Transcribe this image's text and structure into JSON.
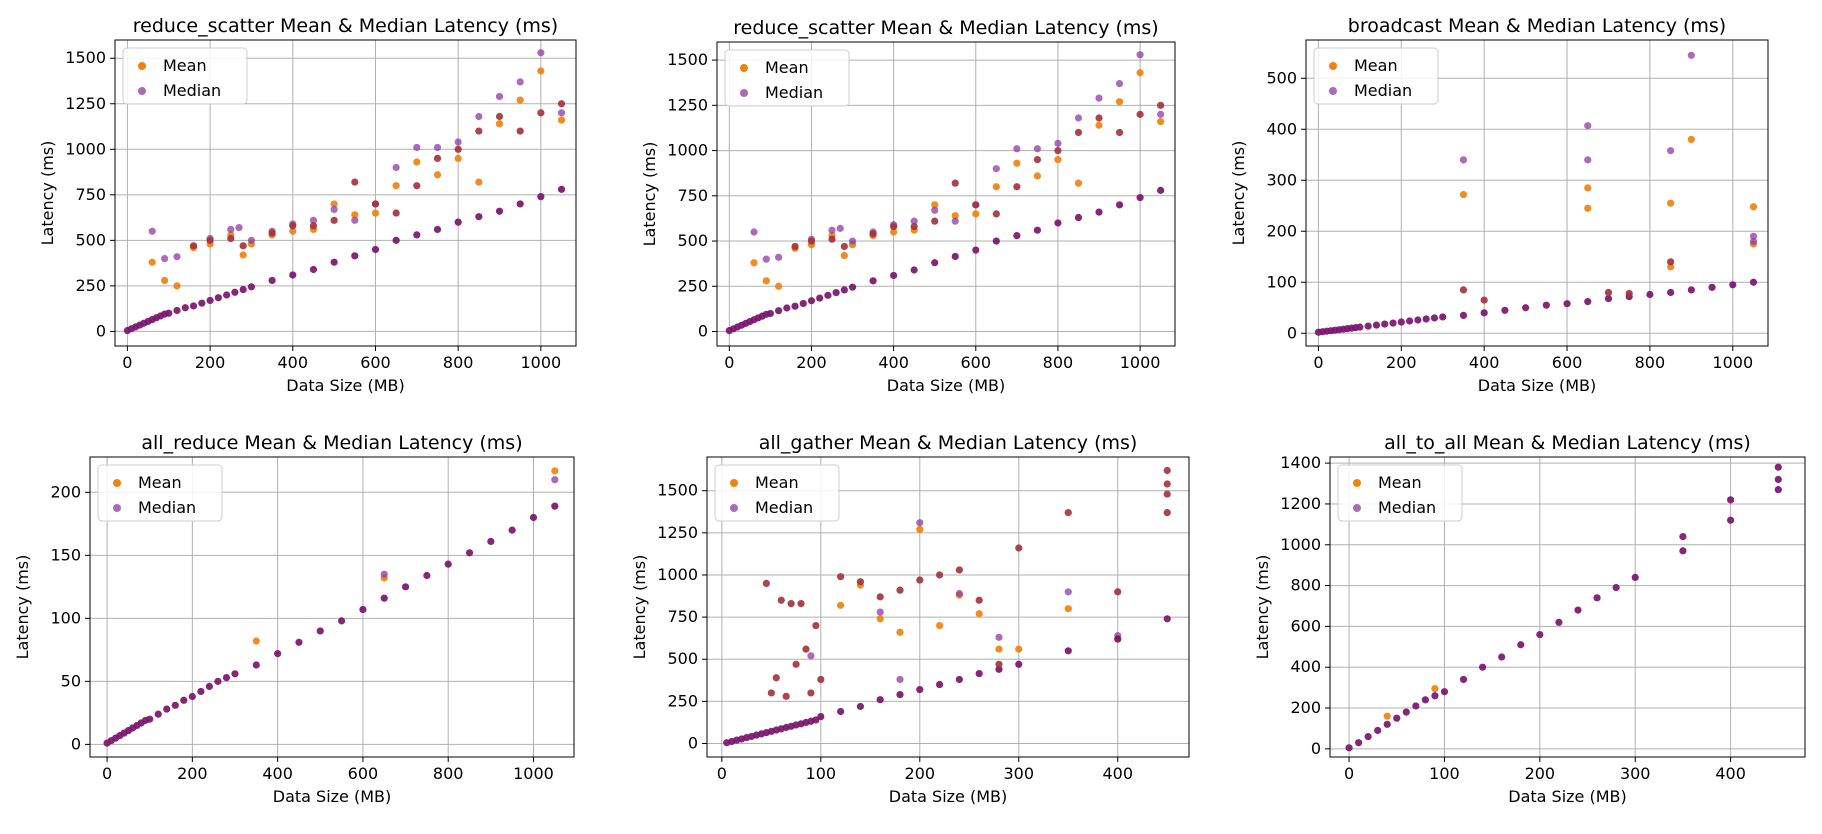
{
  "colors": {
    "mean": "#f0820f",
    "median": "#8e3aa3",
    "overlap": "#a4343d",
    "overlap_deep": "#7a156e",
    "grid": "#b0b0b0"
  },
  "chart_data": [
    {
      "type": "scatter",
      "title": "reduce_scatter Mean & Median Latency (ms)",
      "xlabel": "Data Size (MB)",
      "ylabel": "Latency (ms)",
      "xlim": [
        -30,
        1085
      ],
      "ylim": [
        -80,
        1600
      ],
      "xticks": [
        0,
        200,
        400,
        600,
        800,
        1000
      ],
      "yticks": [
        0,
        250,
        500,
        750,
        1000,
        1250,
        1500
      ],
      "grid": true,
      "legend_position": "top-left",
      "legend": [
        "Mean",
        "Median"
      ],
      "series": [
        {
          "name": "Mean",
          "x": [
            60,
            90,
            120,
            160,
            200,
            250,
            280,
            300,
            350,
            400,
            450,
            500,
            550,
            600,
            650,
            700,
            750,
            800,
            850,
            900,
            950,
            1000,
            1050
          ],
          "y": [
            380,
            280,
            250,
            460,
            480,
            530,
            420,
            480,
            530,
            550,
            560,
            700,
            640,
            650,
            800,
            930,
            860,
            950,
            820,
            1140,
            1270,
            1430,
            1160
          ]
        },
        {
          "name": "Median",
          "x": [
            60,
            90,
            120,
            200,
            250,
            270,
            300,
            350,
            400,
            450,
            500,
            550,
            600,
            650,
            700,
            750,
            800,
            850,
            900,
            950,
            1000,
            1050
          ],
          "y": [
            550,
            400,
            410,
            510,
            560,
            570,
            500,
            550,
            590,
            610,
            670,
            610,
            700,
            900,
            1010,
            1010,
            1040,
            1180,
            1290,
            1370,
            1530,
            1200
          ]
        },
        {
          "name": "",
          "x": [
            0,
            10,
            20,
            30,
            40,
            50,
            60,
            70,
            80,
            90,
            100,
            120,
            140,
            160,
            180,
            200,
            220,
            240,
            260,
            280,
            300,
            350,
            400,
            450,
            500,
            550,
            600,
            650,
            700,
            750,
            800,
            850,
            900,
            950,
            1000,
            1050
          ],
          "y": [
            5,
            15,
            25,
            35,
            45,
            55,
            65,
            75,
            85,
            95,
            100,
            115,
            130,
            140,
            155,
            170,
            185,
            200,
            215,
            230,
            245,
            280,
            310,
            340,
            380,
            415,
            450,
            500,
            530,
            560,
            600,
            630,
            660,
            700,
            740,
            780
          ]
        },
        {
          "name": "",
          "x": [
            160,
            200,
            250,
            280,
            350,
            400,
            450,
            500,
            550,
            600,
            650,
            700,
            750,
            800,
            850,
            900,
            950,
            1000,
            1050
          ],
          "y": [
            470,
            500,
            510,
            470,
            540,
            580,
            580,
            610,
            820,
            700,
            650,
            800,
            950,
            1000,
            1100,
            1180,
            1100,
            1200,
            1250
          ]
        }
      ]
    },
    {
      "type": "scatter",
      "title": "reduce_scatter Mean & Median Latency (ms)",
      "xlabel": "Data Size (MB)",
      "ylabel": "Latency (ms)",
      "xlim": [
        -30,
        1085
      ],
      "ylim": [
        -80,
        1600
      ],
      "xticks": [
        0,
        200,
        400,
        600,
        800,
        1000
      ],
      "yticks": [
        0,
        250,
        500,
        750,
        1000,
        1250,
        1500
      ],
      "grid": true,
      "legend_position": "top-left",
      "legend": [
        "Mean",
        "Median"
      ],
      "series": [
        {
          "name": "Mean",
          "x": [
            60,
            90,
            120,
            160,
            200,
            250,
            280,
            300,
            350,
            400,
            450,
            500,
            550,
            600,
            650,
            700,
            750,
            800,
            850,
            900,
            950,
            1000,
            1050
          ],
          "y": [
            380,
            280,
            250,
            460,
            480,
            530,
            420,
            480,
            530,
            550,
            560,
            700,
            640,
            650,
            800,
            930,
            860,
            950,
            820,
            1140,
            1270,
            1430,
            1160
          ]
        },
        {
          "name": "Median",
          "x": [
            60,
            90,
            120,
            200,
            250,
            270,
            300,
            350,
            400,
            450,
            500,
            550,
            600,
            650,
            700,
            750,
            800,
            850,
            900,
            950,
            1000,
            1050
          ],
          "y": [
            550,
            400,
            410,
            510,
            560,
            570,
            500,
            550,
            590,
            610,
            670,
            610,
            700,
            900,
            1010,
            1010,
            1040,
            1180,
            1290,
            1370,
            1530,
            1200
          ]
        },
        {
          "name": "",
          "x": [
            0,
            10,
            20,
            30,
            40,
            50,
            60,
            70,
            80,
            90,
            100,
            120,
            140,
            160,
            180,
            200,
            220,
            240,
            260,
            280,
            300,
            350,
            400,
            450,
            500,
            550,
            600,
            650,
            700,
            750,
            800,
            850,
            900,
            950,
            1000,
            1050
          ],
          "y": [
            5,
            15,
            25,
            35,
            45,
            55,
            65,
            75,
            85,
            95,
            100,
            115,
            130,
            140,
            155,
            170,
            185,
            200,
            215,
            230,
            245,
            280,
            310,
            340,
            380,
            415,
            450,
            500,
            530,
            560,
            600,
            630,
            660,
            700,
            740,
            780
          ]
        },
        {
          "name": "",
          "x": [
            160,
            200,
            250,
            280,
            350,
            400,
            450,
            500,
            550,
            600,
            650,
            700,
            750,
            800,
            850,
            900,
            950,
            1000,
            1050
          ],
          "y": [
            470,
            500,
            510,
            470,
            540,
            580,
            580,
            610,
            820,
            700,
            650,
            800,
            950,
            1000,
            1100,
            1180,
            1100,
            1200,
            1250
          ]
        }
      ]
    },
    {
      "type": "scatter",
      "title": "broadcast Mean & Median Latency (ms)",
      "xlabel": "Data Size (MB)",
      "ylabel": "Latency (ms)",
      "xlim": [
        -30,
        1085
      ],
      "ylim": [
        -25,
        575
      ],
      "xticks": [
        0,
        200,
        400,
        600,
        800,
        1000
      ],
      "yticks": [
        0,
        100,
        200,
        300,
        400,
        500
      ],
      "grid": true,
      "legend_position": "top-left",
      "legend": [
        "Mean",
        "Median"
      ],
      "series": [
        {
          "name": "Mean",
          "x": [
            350,
            650,
            650,
            850,
            850,
            900,
            1050,
            1050
          ],
          "y": [
            272,
            285,
            245,
            255,
            130,
            380,
            248,
            175
          ]
        },
        {
          "name": "Median",
          "x": [
            350,
            650,
            650,
            850,
            900,
            1050,
            1050
          ],
          "y": [
            340,
            407,
            340,
            358,
            545,
            190,
            180
          ]
        },
        {
          "name": "",
          "x": [
            0,
            10,
            20,
            30,
            40,
            50,
            60,
            70,
            80,
            90,
            100,
            120,
            140,
            160,
            180,
            200,
            220,
            240,
            260,
            280,
            300,
            350,
            400,
            450,
            500,
            550,
            600,
            650,
            700,
            750,
            800,
            850,
            900,
            950,
            1000,
            1050
          ],
          "y": [
            2,
            3,
            4,
            5,
            6,
            7,
            8,
            9,
            10,
            11,
            12,
            14,
            16,
            18,
            20,
            22,
            24,
            26,
            28,
            30,
            32,
            35,
            40,
            45,
            50,
            55,
            58,
            62,
            68,
            72,
            76,
            80,
            85,
            90,
            95,
            100
          ]
        },
        {
          "name": "",
          "x": [
            350,
            400,
            700,
            750,
            850
          ],
          "y": [
            85,
            65,
            80,
            78,
            140
          ]
        }
      ]
    },
    {
      "type": "scatter",
      "title": "all_reduce Mean & Median Latency (ms)",
      "xlabel": "Data Size (MB)",
      "ylabel": "Latency (ms)",
      "xlim": [
        -40,
        1095
      ],
      "ylim": [
        -10,
        228
      ],
      "xticks": [
        0,
        200,
        400,
        600,
        800,
        1000
      ],
      "yticks": [
        0,
        50,
        100,
        150,
        200
      ],
      "grid": true,
      "legend_position": "top-left",
      "legend": [
        "Mean",
        "Median"
      ],
      "series": [
        {
          "name": "Mean",
          "x": [
            350,
            650,
            1050
          ],
          "y": [
            82,
            132,
            217
          ]
        },
        {
          "name": "Median",
          "x": [
            650,
            1050
          ],
          "y": [
            135,
            210
          ]
        },
        {
          "name": "",
          "x": [
            0,
            10,
            20,
            30,
            40,
            50,
            60,
            70,
            80,
            90,
            100,
            120,
            140,
            160,
            180,
            200,
            220,
            240,
            260,
            280,
            300,
            350,
            400,
            450,
            500,
            550,
            600,
            650,
            700,
            750,
            800,
            850,
            900,
            950,
            1000,
            1050
          ],
          "y": [
            1,
            3,
            5,
            7,
            9,
            11,
            13,
            15,
            17,
            19,
            20,
            24,
            28,
            31,
            35,
            38,
            42,
            46,
            50,
            53,
            56,
            63,
            72,
            81,
            90,
            98,
            107,
            116,
            125,
            134,
            143,
            152,
            161,
            170,
            180,
            189
          ]
        }
      ]
    },
    {
      "type": "scatter",
      "title": "all_gather Mean & Median Latency (ms)",
      "xlabel": "Data Size (MB)",
      "ylabel": "Latency (ms)",
      "xlim": [
        -15,
        472
      ],
      "ylim": [
        -80,
        1700
      ],
      "xticks": [
        0,
        100,
        200,
        300,
        400
      ],
      "yticks": [
        0,
        250,
        500,
        750,
        1000,
        1250,
        1500
      ],
      "grid": true,
      "legend_position": "top-left",
      "legend": [
        "Mean",
        "Median"
      ],
      "series": [
        {
          "name": "Mean",
          "x": [
            120,
            140,
            160,
            180,
            200,
            220,
            240,
            260,
            280,
            300,
            350,
            400
          ],
          "y": [
            820,
            940,
            740,
            660,
            1270,
            700,
            880,
            770,
            560,
            560,
            800,
            620
          ]
        },
        {
          "name": "Median",
          "x": [
            90,
            160,
            180,
            200,
            240,
            280,
            350,
            400
          ],
          "y": [
            520,
            780,
            380,
            1310,
            890,
            630,
            900,
            640
          ]
        },
        {
          "name": "",
          "x": [
            5,
            10,
            15,
            20,
            25,
            30,
            35,
            40,
            45,
            50,
            55,
            60,
            65,
            70,
            75,
            80,
            85,
            90,
            95,
            100,
            120,
            140,
            160,
            180,
            200,
            220,
            240,
            260,
            280,
            300,
            350,
            400,
            450
          ],
          "y": [
            5,
            12,
            20,
            27,
            35,
            42,
            50,
            57,
            65,
            72,
            80,
            87,
            95,
            102,
            110,
            117,
            125,
            132,
            140,
            160,
            190,
            220,
            260,
            290,
            320,
            350,
            380,
            415,
            440,
            470,
            550,
            620,
            740
          ]
        },
        {
          "name": "",
          "x": [
            45,
            50,
            55,
            60,
            65,
            70,
            75,
            80,
            85,
            90,
            95,
            100,
            120,
            140,
            160,
            180,
            200,
            220,
            240,
            260,
            280,
            300,
            350,
            400,
            450,
            450,
            450,
            450
          ],
          "y": [
            950,
            300,
            390,
            850,
            280,
            830,
            470,
            830,
            560,
            300,
            700,
            380,
            990,
            960,
            870,
            910,
            970,
            1000,
            1030,
            850,
            470,
            1160,
            1370,
            900,
            1620,
            1480,
            1370,
            1540
          ]
        }
      ]
    },
    {
      "type": "scatter",
      "title": "all_to_all Mean & Median Latency (ms)",
      "xlabel": "Data Size (MB)",
      "ylabel": "Latency (ms)",
      "xlim": [
        -20,
        478
      ],
      "ylim": [
        -40,
        1430
      ],
      "xticks": [
        0,
        100,
        200,
        300,
        400
      ],
      "yticks": [
        0,
        200,
        400,
        600,
        800,
        1000,
        1200,
        1400
      ],
      "grid": true,
      "legend_position": "top-left",
      "legend": [
        "Mean",
        "Median"
      ],
      "series": [
        {
          "name": "Mean",
          "x": [
            40,
            90
          ],
          "y": [
            160,
            295
          ]
        },
        {
          "name": "Median",
          "x": [],
          "y": []
        },
        {
          "name": "",
          "x": [
            0,
            10,
            20,
            30,
            40,
            50,
            60,
            70,
            80,
            90,
            100,
            120,
            140,
            160,
            180,
            200,
            220,
            240,
            260,
            280,
            300,
            350,
            350,
            400,
            400,
            450,
            450,
            450
          ],
          "y": [
            5,
            30,
            60,
            90,
            120,
            150,
            180,
            210,
            240,
            260,
            280,
            340,
            400,
            450,
            510,
            560,
            620,
            680,
            740,
            790,
            840,
            970,
            1040,
            1120,
            1220,
            1270,
            1320,
            1380
          ]
        }
      ]
    }
  ]
}
